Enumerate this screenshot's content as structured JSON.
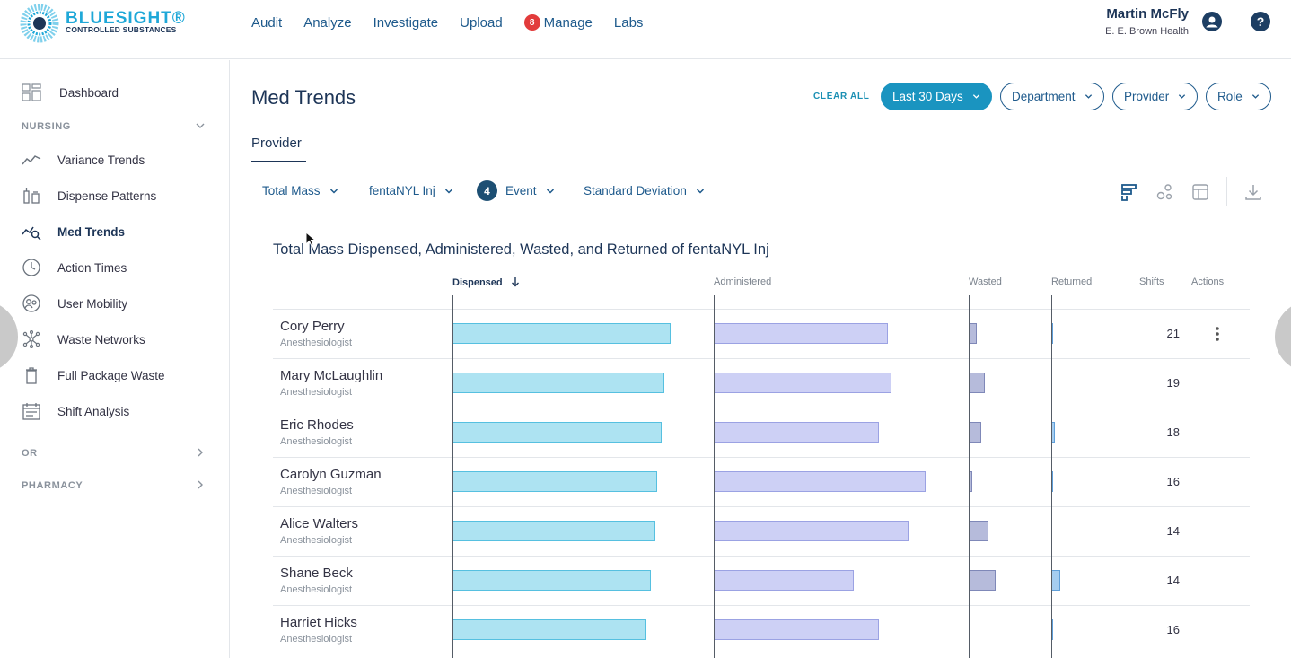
{
  "header": {
    "brand_title": "BLUESIGHT®",
    "brand_subtitle": "CONTROLLED SUBSTANCES",
    "nav": [
      {
        "label": "Audit"
      },
      {
        "label": "Analyze"
      },
      {
        "label": "Investigate"
      },
      {
        "label": "Upload"
      },
      {
        "label": "Manage",
        "badge": "8"
      },
      {
        "label": "Labs"
      }
    ],
    "user_name": "Martin McFly",
    "user_org": "E. E. Brown Health",
    "help_label": "?"
  },
  "sidebar": {
    "dashboard": "Dashboard",
    "nursing_section": "NURSING",
    "items": [
      {
        "label": "Variance Trends",
        "icon": "trend-line-icon"
      },
      {
        "label": "Dispense Patterns",
        "icon": "syringe-vial-icon"
      },
      {
        "label": "Med Trends",
        "icon": "trend-magnifier-icon",
        "active": true
      },
      {
        "label": "Action Times",
        "icon": "clock-icon"
      },
      {
        "label": "User Mobility",
        "icon": "users-circle-icon"
      },
      {
        "label": "Waste Networks",
        "icon": "network-icon"
      },
      {
        "label": "Full Package Waste",
        "icon": "trash-icon"
      },
      {
        "label": "Shift Analysis",
        "icon": "calendar-icon"
      }
    ],
    "or_section": "OR",
    "pharmacy_section": "PHARMACY"
  },
  "main": {
    "title": "Med Trends",
    "clear_all": "CLEAR ALL",
    "filters": [
      {
        "label": "Last 30 Days",
        "active": true
      },
      {
        "label": "Department"
      },
      {
        "label": "Provider"
      },
      {
        "label": "Role"
      }
    ],
    "tab": "Provider",
    "selectors": {
      "metric": "Total Mass",
      "medication": "fentaNYL Inj",
      "event_count": "4",
      "event": "Event",
      "stat": "Standard Deviation"
    },
    "chart_title": "Total Mass Dispensed, Administered, Wasted, and Returned of fentaNYL Inj",
    "columns": {
      "dispensed": "Dispensed",
      "administered": "Administered",
      "wasted": "Wasted",
      "returned": "Returned",
      "shifts": "Shifts",
      "actions": "Actions"
    }
  },
  "chart_data": {
    "type": "bar",
    "title": "Total Mass Dispensed, Administered, Wasted, and Returned of fentaNYL Inj",
    "categories": [
      "Cory Perry",
      "Mary McLaughlin",
      "Eric Rhodes",
      "Carolyn Guzman",
      "Alice Walters",
      "Shane Beck",
      "Harriet Hicks"
    ],
    "roles": [
      "Anesthesiologist",
      "Anesthesiologist",
      "Anesthesiologist",
      "Anesthesiologist",
      "Anesthesiologist",
      "Anesthesiologist",
      "Anesthesiologist"
    ],
    "series": [
      {
        "name": "Dispensed",
        "values": [
          1.0,
          0.97,
          0.96,
          0.94,
          0.93,
          0.91,
          0.89
        ]
      },
      {
        "name": "Administered",
        "values": [
          0.82,
          0.84,
          0.78,
          1.0,
          0.92,
          0.66,
          0.78
        ]
      },
      {
        "name": "Wasted",
        "values": [
          0.3,
          0.6,
          0.47,
          0.13,
          0.73,
          1.0,
          0
        ]
      },
      {
        "name": "Returned",
        "values": [
          0.2,
          0,
          0.4,
          0.2,
          0,
          1.0,
          0.2
        ]
      }
    ],
    "shifts": [
      21,
      19,
      18,
      16,
      14,
      14,
      16
    ],
    "sort": "Dispensed descending",
    "colors": {
      "dispensed": "#ade3f2",
      "administered": "#cdd0f5",
      "wasted": "#b6bbdb",
      "returned": "#a5cdf0",
      "accent": "#1a94c0"
    }
  }
}
